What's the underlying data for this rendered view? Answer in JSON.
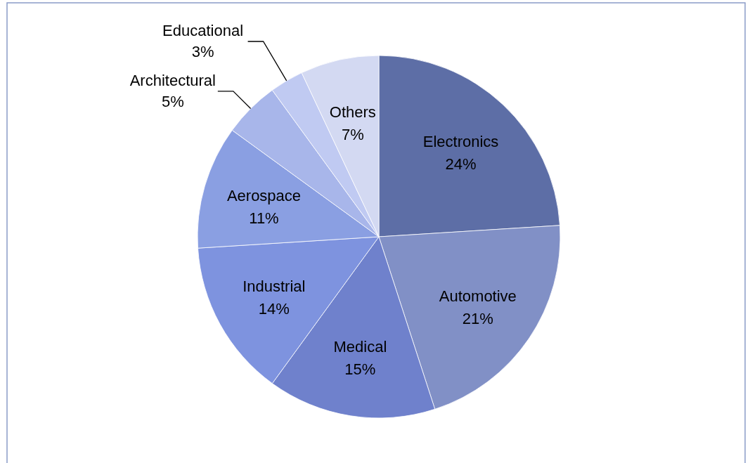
{
  "chart_data": {
    "type": "pie",
    "categories": [
      "Electronics",
      "Automotive",
      "Medical",
      "Industrial",
      "Aerospace",
      "Architectural",
      "Educational",
      "Others"
    ],
    "values": [
      24,
      21,
      15,
      14,
      11,
      5,
      3,
      7
    ],
    "colors": [
      "#5d6ea6",
      "#8190c6",
      "#6f81cc",
      "#7e93df",
      "#8a9fe2",
      "#a8b6ea",
      "#c0caf2",
      "#d3d9f2"
    ],
    "value_labels": [
      "24%",
      "21%",
      "15%",
      "14%",
      "11%",
      "5%",
      "3%",
      "7%"
    ]
  }
}
